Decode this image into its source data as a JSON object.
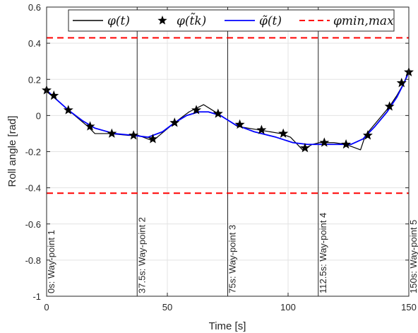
{
  "chart_data": {
    "type": "line",
    "xlabel": "Time [s]",
    "ylabel": "Roll angle [rad]",
    "xlim": [
      0,
      150
    ],
    "ylim": [
      -1,
      0.6
    ],
    "xticks": [
      0,
      50,
      100,
      150
    ],
    "yticks": [
      -1,
      -0.8,
      -0.6,
      -0.4,
      -0.2,
      0,
      0.2,
      0.4,
      0.6
    ],
    "xtick_labels": [
      "0",
      "50",
      "100",
      "150"
    ],
    "ytick_labels": [
      "-1",
      "-0.8",
      "-0.6",
      "-0.4",
      "-0.2",
      "0",
      "0.2",
      "0.4",
      "0.6"
    ],
    "grid": true,
    "legend_position": "top",
    "legend": [
      {
        "label": "φ(t)",
        "color": "#000000",
        "style": "solid"
      },
      {
        "label": "φ(t̃k)",
        "color": "#000000",
        "style": "star"
      },
      {
        "label": "φ̃(t)",
        "color": "#0000ff",
        "style": "solid"
      },
      {
        "label": "φmin,max",
        "color": "#ff0000",
        "style": "dashed"
      }
    ],
    "series": [
      {
        "label_index": 0,
        "color": "#000000",
        "style": "solid",
        "x": [
          0,
          3,
          9,
          17,
          20,
          26,
          34,
          38,
          44,
          53,
          59,
          62,
          65,
          71,
          79,
          88,
          97,
          101,
          106,
          110,
          113,
          119,
          124,
          130,
          132,
          142,
          145,
          148,
          150
        ],
        "y": [
          0.14,
          0.1,
          0.03,
          -0.06,
          -0.1,
          -0.1,
          -0.11,
          -0.11,
          -0.14,
          -0.04,
          0.02,
          0.04,
          0.06,
          0.01,
          -0.06,
          -0.08,
          -0.1,
          -0.12,
          -0.19,
          -0.16,
          -0.15,
          -0.15,
          -0.16,
          -0.19,
          -0.11,
          0.05,
          0.11,
          0.18,
          0.25
        ]
      },
      {
        "label_index": 1,
        "color": "#000000",
        "style": "star",
        "x": [
          0,
          3,
          9,
          18,
          27,
          36,
          44,
          53,
          62,
          71,
          80,
          89,
          98,
          107,
          115,
          124,
          133,
          142,
          147,
          150
        ],
        "y": [
          0.14,
          0.11,
          0.03,
          -0.06,
          -0.1,
          -0.11,
          -0.13,
          -0.04,
          0.03,
          0.01,
          -0.05,
          -0.08,
          -0.1,
          -0.18,
          -0.15,
          -0.16,
          -0.11,
          0.05,
          0.18,
          0.24
        ]
      },
      {
        "label_index": 2,
        "color": "#0000ff",
        "style": "solid",
        "x": [
          0,
          4,
          9,
          15,
          20,
          28,
          36,
          42,
          48,
          53,
          58,
          63,
          67,
          72,
          78,
          86,
          95,
          102,
          108,
          114,
          120,
          126,
          131,
          136,
          141,
          145,
          148,
          150
        ],
        "y": [
          0.14,
          0.09,
          0.03,
          -0.03,
          -0.07,
          -0.1,
          -0.11,
          -0.12,
          -0.09,
          -0.04,
          0.0,
          0.02,
          0.02,
          0.0,
          -0.05,
          -0.09,
          -0.12,
          -0.15,
          -0.16,
          -0.16,
          -0.16,
          -0.16,
          -0.13,
          -0.06,
          0.02,
          0.1,
          0.18,
          0.24
        ]
      }
    ],
    "limits": {
      "label_index": 3,
      "color": "#ff0000",
      "values": [
        0.43,
        -0.43
      ]
    },
    "waypoints": [
      {
        "x": 0,
        "label": "0s: Way-point 1"
      },
      {
        "x": 37.5,
        "label": "37.5s: Way-point 2"
      },
      {
        "x": 75,
        "label": "75s: Way-point 3"
      },
      {
        "x": 112.5,
        "label": "112.5s: Way-point 4"
      },
      {
        "x": 150,
        "label": "150s: Way-point 5"
      }
    ]
  }
}
